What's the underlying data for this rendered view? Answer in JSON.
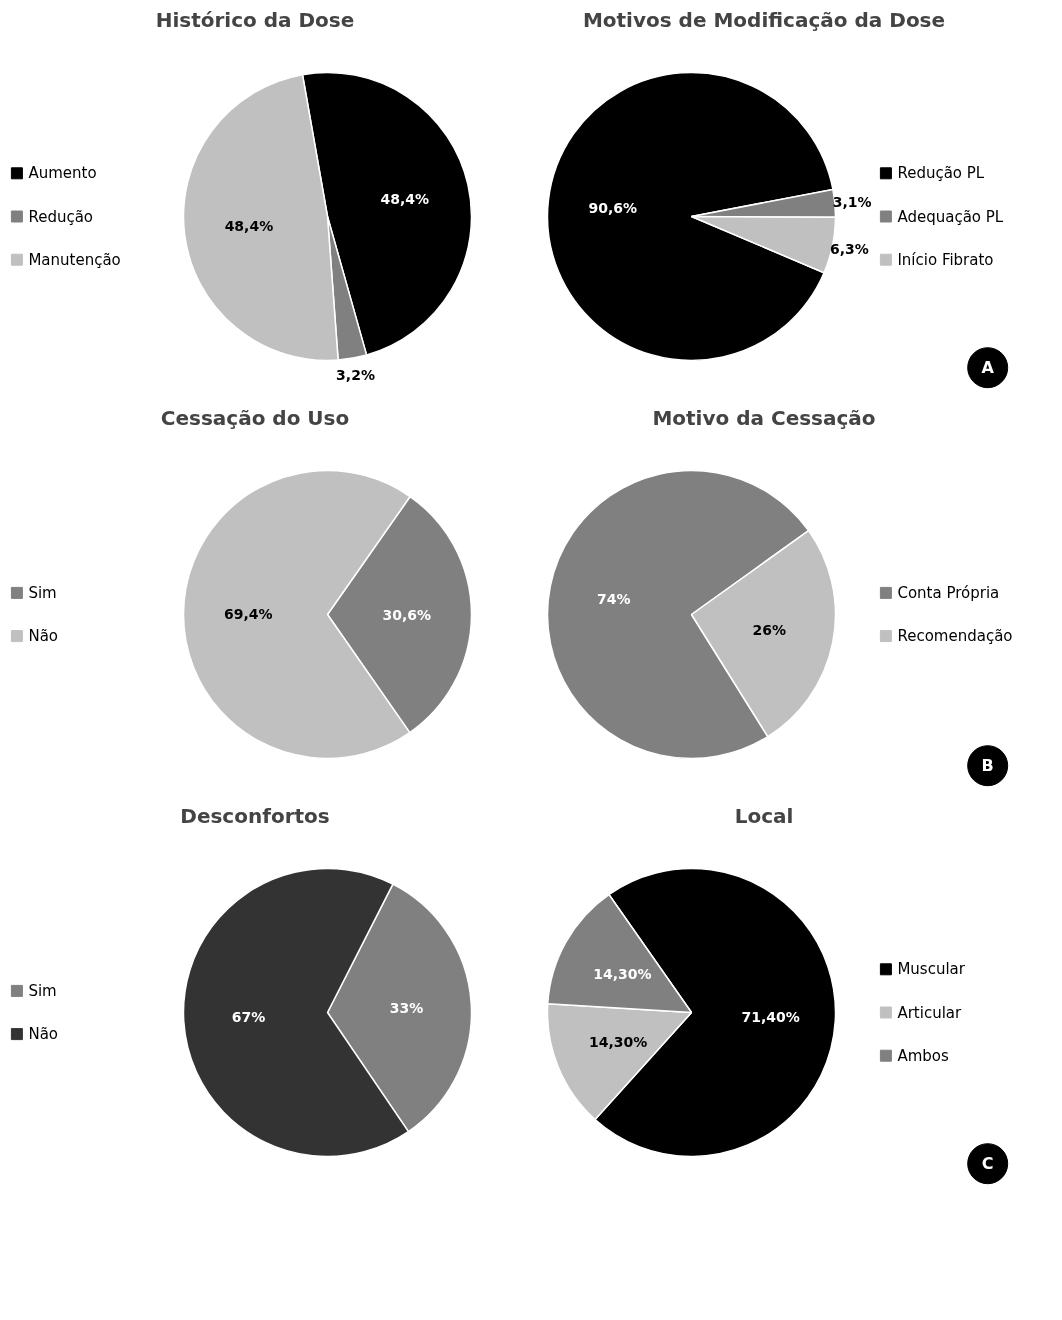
{
  "chart_data": [
    {
      "type": "pie",
      "title": "Histórico da Dose",
      "categories": [
        "Aumento",
        "Redução",
        "Manutenção"
      ],
      "values": [
        48.4,
        3.2,
        48.4
      ],
      "value_labels": [
        "48,4%",
        "3,2%",
        "48,4%"
      ],
      "colors": [
        "#000000",
        "#808080",
        "#c0c0c0"
      ],
      "legend": "left"
    },
    {
      "type": "pie",
      "title": "Motivos de Modificação da Dose",
      "categories": [
        "Redução PL",
        "Adequação PL",
        "Início Fibrato"
      ],
      "values": [
        90.6,
        3.1,
        6.3
      ],
      "value_labels": [
        "90,6%",
        "3,1%",
        "6,3%"
      ],
      "colors": [
        "#000000",
        "#808080",
        "#c0c0c0"
      ],
      "legend": "right",
      "annotations": [
        "A"
      ]
    },
    {
      "type": "pie",
      "title": "Cessação do Uso",
      "categories": [
        "Sim",
        "Não"
      ],
      "values": [
        30.6,
        69.4
      ],
      "value_labels": [
        "30,6%",
        "69,4%"
      ],
      "colors": [
        "#808080",
        "#c0c0c0"
      ],
      "legend": "left"
    },
    {
      "type": "pie",
      "title": "Motivo da Cessação",
      "categories": [
        "Conta Própria",
        "Recomendação"
      ],
      "values": [
        74,
        26
      ],
      "value_labels": [
        "74%",
        "26%"
      ],
      "colors": [
        "#808080",
        "#c0c0c0"
      ],
      "legend": "right",
      "annotations": [
        "B"
      ]
    },
    {
      "type": "pie",
      "title": "Desconfortos",
      "categories": [
        "Sim",
        "Não"
      ],
      "values": [
        33,
        67
      ],
      "value_labels": [
        "33%",
        "67%"
      ],
      "colors": [
        "#808080",
        "#333333"
      ],
      "legend": "left"
    },
    {
      "type": "pie",
      "title": "Local",
      "categories": [
        "Muscular",
        "Articular",
        "Ambos"
      ],
      "values": [
        71.4,
        14.3,
        14.3
      ],
      "value_labels": [
        "71,40%",
        "14,30%",
        "14,30%"
      ],
      "colors": [
        "#000000",
        "#c0c0c0",
        "#808080"
      ],
      "legend": "right",
      "annotations": [
        "C"
      ]
    }
  ]
}
